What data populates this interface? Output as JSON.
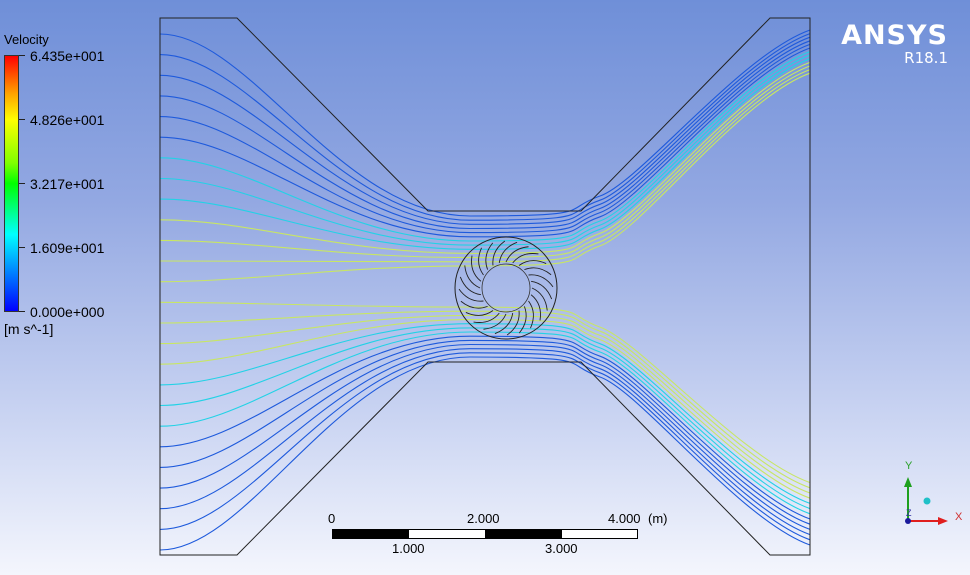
{
  "legend": {
    "title": "Velocity",
    "ticks": [
      "6.435e+001",
      "4.826e+001",
      "3.217e+001",
      "1.609e+001",
      "0.000e+000"
    ],
    "unit": "[m s^-1]"
  },
  "brand": {
    "name": "ANSYS",
    "version": "R18.1"
  },
  "scale_bar": {
    "top_labels": [
      "0",
      "2.000",
      "4.000"
    ],
    "unit": "(m)",
    "bottom_labels": [
      "1.000",
      "3.000"
    ]
  },
  "axis_triad": {
    "y_label": "Y",
    "x_label": "X",
    "z_label": "Z"
  },
  "colors": {
    "background_top": "#6f8fd8",
    "background_bottom": "#f4f6fd",
    "streamline_low": "#1e5adc",
    "streamline_mid": "#22d2e6",
    "streamline_high": "#c8e664",
    "geometry_edge": "#222222"
  }
}
